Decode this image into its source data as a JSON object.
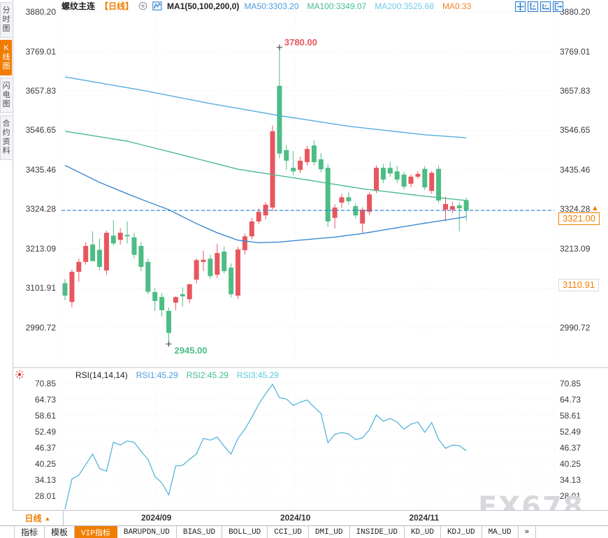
{
  "header": {
    "symbol": "螺纹主连",
    "period_tag": "【日线】",
    "ma_settings": "MA1(50,100,200,0)",
    "ma_values": [
      {
        "label": "MA50:3303.20",
        "color": "#4a9bdf"
      },
      {
        "label": "MA100:3349.07",
        "color": "#43bd8c"
      },
      {
        "label": "MA200:3525.68",
        "color": "#72c9e8"
      },
      {
        "label": "MA0:33",
        "color": "#f0842a"
      }
    ],
    "tool_icons": [
      "move-tool-icon",
      "y-axis-zoom-icon",
      "x-axis-zoom-icon",
      "restore-axis-icon"
    ],
    "circle_plus_icon": "circle-plus-icon",
    "mini-chart-icon": "ma-indicator-icon"
  },
  "sidebar": {
    "tabs": [
      {
        "label": "分时图",
        "active": false
      },
      {
        "label": "K线图",
        "active": true
      },
      {
        "label": "闪电图",
        "active": false
      },
      {
        "label": "合约资料",
        "active": false
      }
    ]
  },
  "colors": {
    "up": "#e8565e",
    "down": "#4dbd85",
    "ma50": "#3d8bd4",
    "ma100": "#4cb98d",
    "ma200": "#55aedd",
    "rsi_line": "#49b0d8",
    "accent_orange": "#f07d00",
    "price_line": "#2b7fd4",
    "grid": "#e4e4ea",
    "annotation_high": "#e8565e",
    "annotation_low": "#4dbd85"
  },
  "chart_data": {
    "type": "candlestick",
    "symbol": "螺纹主连",
    "interval": "日线",
    "grid": true,
    "price_axis_labels": [
      "3880.20",
      "3769.01",
      "3657.83",
      "3546.65",
      "3435.46",
      "3324.28",
      "3213.09",
      "3101.91",
      "2990.72"
    ],
    "y_range": [
      2990.72,
      3880.2
    ],
    "x_axis_labels": [
      "2024/09",
      "2024/10",
      "2024/11"
    ],
    "x_tick_candle_positions": [
      13.2,
      33.3,
      51.9
    ],
    "candles_ohlc": [
      [
        3116,
        3128,
        3068,
        3081
      ],
      [
        3063,
        3155,
        3048,
        3148
      ],
      [
        3148,
        3186,
        3120,
        3176
      ],
      [
        3176,
        3232,
        3168,
        3221
      ],
      [
        3225,
        3262,
        3200,
        3178
      ],
      [
        3210,
        3242,
        3152,
        3162
      ],
      [
        3152,
        3264,
        3140,
        3258
      ],
      [
        3250,
        3294,
        3222,
        3228
      ],
      [
        3238,
        3272,
        3225,
        3258
      ],
      [
        3252,
        3290,
        3228,
        3248
      ],
      [
        3245,
        3258,
        3186,
        3196
      ],
      [
        3221,
        3232,
        3150,
        3162
      ],
      [
        3176,
        3186,
        3085,
        3092
      ],
      [
        3091,
        3102,
        3038,
        3066
      ],
      [
        3077,
        3088,
        3022,
        3040
      ],
      [
        3038,
        3048,
        2945,
        2976
      ],
      [
        3061,
        3079,
        3040,
        3077
      ],
      [
        3085,
        3104,
        3050,
        3079
      ],
      [
        3071,
        3115,
        3060,
        3113
      ],
      [
        3126,
        3186,
        3116,
        3181
      ],
      [
        3176,
        3208,
        3150,
        3182
      ],
      [
        3185,
        3196,
        3128,
        3136
      ],
      [
        3140,
        3227,
        3130,
        3201
      ],
      [
        3205,
        3220,
        3143,
        3150
      ],
      [
        3160,
        3172,
        3076,
        3085
      ],
      [
        3081,
        3218,
        3072,
        3211
      ],
      [
        3209,
        3256,
        3196,
        3248
      ],
      [
        3248,
        3300,
        3240,
        3290
      ],
      [
        3290,
        3326,
        3282,
        3317
      ],
      [
        3307,
        3344,
        3296,
        3337
      ],
      [
        3329,
        3560,
        3318,
        3544
      ],
      [
        3672,
        3780,
        3468,
        3481
      ],
      [
        3491,
        3505,
        3435,
        3461
      ],
      [
        3441,
        3488,
        3420,
        3431
      ],
      [
        3435,
        3472,
        3426,
        3461
      ],
      [
        3457,
        3502,
        3448,
        3494
      ],
      [
        3504,
        3518,
        3448,
        3457
      ],
      [
        3465,
        3482,
        3428,
        3437
      ],
      [
        3441,
        3452,
        3274,
        3290
      ],
      [
        3300,
        3338,
        3270,
        3329
      ],
      [
        3343,
        3368,
        3328,
        3358
      ],
      [
        3358,
        3372,
        3338,
        3347
      ],
      [
        3333,
        3342,
        3298,
        3307
      ],
      [
        3284,
        3330,
        3258,
        3323
      ],
      [
        3317,
        3372,
        3308,
        3366
      ],
      [
        3376,
        3448,
        3370,
        3441
      ],
      [
        3441,
        3452,
        3398,
        3408
      ],
      [
        3441,
        3458,
        3416,
        3425
      ],
      [
        3431,
        3447,
        3398,
        3408
      ],
      [
        3422,
        3430,
        3380,
        3388
      ],
      [
        3396,
        3422,
        3386,
        3416
      ],
      [
        3416,
        3432,
        3410,
        3424
      ],
      [
        3438,
        3446,
        3378,
        3386
      ],
      [
        3376,
        3432,
        3368,
        3427
      ],
      [
        3438,
        3447,
        3342,
        3349
      ],
      [
        3323,
        3360,
        3290,
        3339
      ],
      [
        3323,
        3345,
        3313,
        3333
      ],
      [
        3335,
        3344,
        3262,
        3327
      ],
      [
        3350,
        3357,
        3292,
        3321
      ]
    ],
    "ma_lines": {
      "ma50": {
        "name": "MA50",
        "anchors": [
          [
            0,
            3448
          ],
          [
            5,
            3400
          ],
          [
            10,
            3360
          ],
          [
            15,
            3323
          ],
          [
            19,
            3284
          ],
          [
            22,
            3258
          ],
          [
            25,
            3237
          ],
          [
            28,
            3230
          ],
          [
            31,
            3232
          ],
          [
            35,
            3239
          ],
          [
            39,
            3246
          ],
          [
            43,
            3256
          ],
          [
            47,
            3269
          ],
          [
            52,
            3285
          ],
          [
            55,
            3294
          ],
          [
            58,
            3303.2
          ]
        ]
      },
      "ma100": {
        "name": "MA100",
        "anchors": [
          [
            0,
            3544
          ],
          [
            9,
            3516
          ],
          [
            17,
            3477
          ],
          [
            25,
            3437
          ],
          [
            34,
            3410
          ],
          [
            43,
            3382
          ],
          [
            52,
            3361
          ],
          [
            58,
            3349.07
          ]
        ]
      },
      "ma200": {
        "name": "MA200",
        "anchors": [
          [
            0,
            3697
          ],
          [
            11,
            3660
          ],
          [
            21,
            3622
          ],
          [
            31,
            3588
          ],
          [
            41,
            3558
          ],
          [
            52,
            3534
          ],
          [
            58,
            3525.68
          ]
        ]
      }
    },
    "annotations": {
      "high_label": "3780.00",
      "high_value": 3780.0,
      "high_index": 31,
      "low_label": "2945.00",
      "low_value": 2945.0,
      "low_index": 15,
      "price_line_value": 3321.0,
      "last_price_label": "3321.00",
      "secondary_price_label": "3110.91",
      "secondary_price_value": 3110.91
    },
    "rsi_panel": {
      "type": "line",
      "title": "RSI(14,14,14)",
      "legend": [
        {
          "label": "RSI1:45.29",
          "color": "#4a9bdf"
        },
        {
          "label": "RSI2:45.29",
          "color": "#43bd8c"
        },
        {
          "label": "RSI3:45.29",
          "color": "#5bc8dc"
        }
      ],
      "axis_labels": [
        "70.85",
        "64.73",
        "58.61",
        "52.49",
        "46.37",
        "40.25",
        "34.13",
        "28.01"
      ],
      "y_range": [
        28.01,
        70.85
      ],
      "values": [
        23,
        34.5,
        36,
        40,
        44,
        38.5,
        37.5,
        48.5,
        47.5,
        49,
        48.5,
        45,
        42,
        35.5,
        33,
        28.5,
        39.5,
        39.7,
        42,
        44,
        50,
        49.3,
        50.5,
        47,
        44,
        50,
        53.5,
        58,
        63,
        67,
        70.6,
        65.5,
        65,
        62.5,
        63.8,
        64.6,
        61.9,
        59.5,
        48.3,
        51.5,
        52.2,
        51.7,
        49.5,
        50.2,
        53.3,
        58.9,
        56.5,
        57.6,
        56.2,
        53.5,
        55.4,
        56.2,
        52.3,
        56,
        49.6,
        46.2,
        47.4,
        47.2,
        45.29
      ]
    }
  },
  "time_axis": {
    "period_label": "日线",
    "period_arrow": "▲"
  },
  "bottom_tabs": [
    {
      "label": "指标",
      "active": false
    },
    {
      "label": "模板",
      "active": false
    },
    {
      "label": "VIP指标",
      "active": true
    },
    {
      "label": "BARUPDN_UD",
      "active": false
    },
    {
      "label": "BIAS_UD",
      "active": false
    },
    {
      "label": "BOLL_UD",
      "active": false
    },
    {
      "label": "CCI_UD",
      "active": false
    },
    {
      "label": "DMI_UD",
      "active": false
    },
    {
      "label": "INSIDE_UD",
      "active": false
    },
    {
      "label": "KD_UD",
      "active": false
    },
    {
      "label": "KDJ_UD",
      "active": false
    },
    {
      "label": "MA_UD",
      "active": false
    },
    {
      "label": "»",
      "active": false
    }
  ],
  "watermark": {
    "text": "FX678"
  }
}
